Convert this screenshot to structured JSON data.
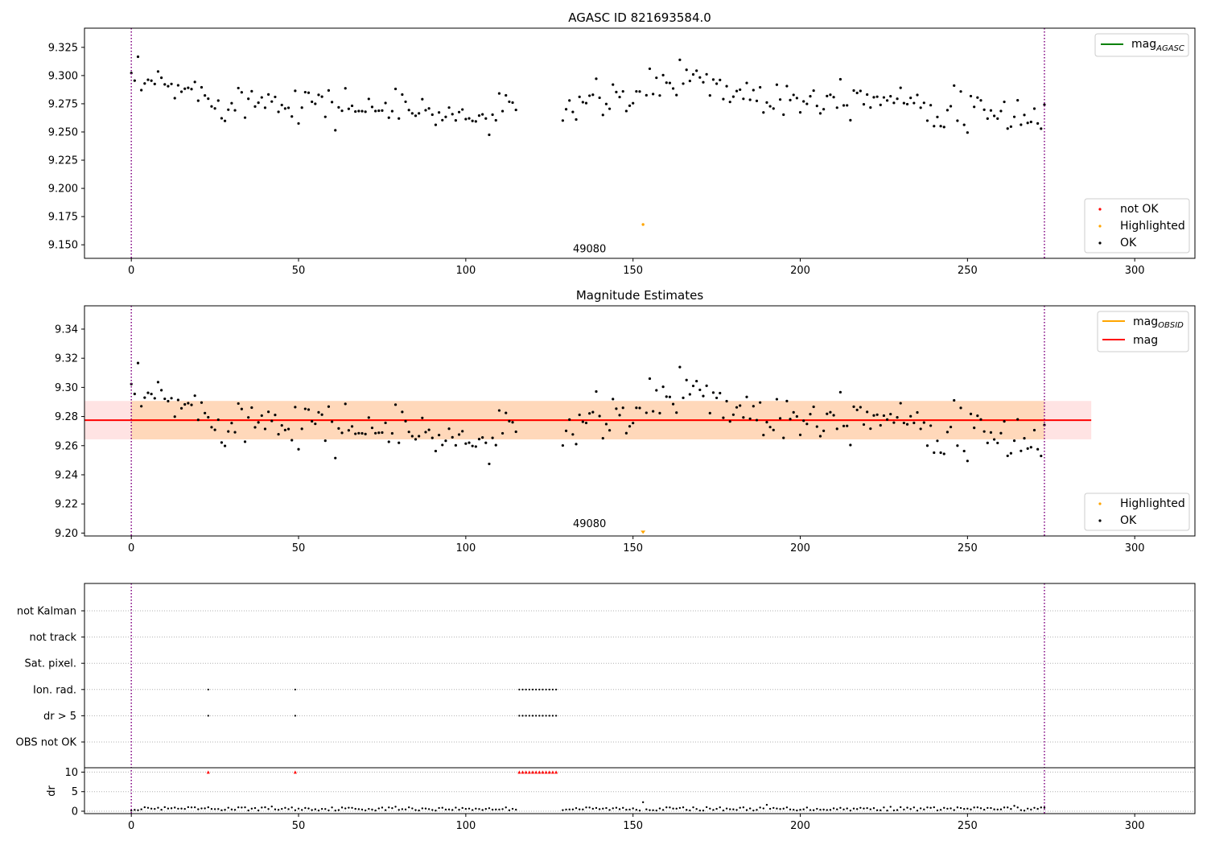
{
  "chart_data": [
    {
      "type": "scatter",
      "title": "AGASC ID 821693584.0",
      "xlim": [
        -14,
        318
      ],
      "ylim": [
        9.138,
        9.342
      ],
      "xticks": [
        0,
        50,
        100,
        150,
        200,
        250,
        300
      ],
      "yticks": [
        9.15,
        9.175,
        9.2,
        9.225,
        9.25,
        9.275,
        9.3,
        9.325
      ],
      "ytick_labels": [
        "9.150",
        "9.175",
        "9.200",
        "9.225",
        "9.250",
        "9.275",
        "9.300",
        "9.325"
      ],
      "vlines": [
        0,
        273
      ],
      "annotation": {
        "text": "49080",
        "x": 137,
        "y": 9.147
      },
      "line_legend": [
        {
          "label": "mag",
          "sub": "AGASC",
          "color": "#008000"
        }
      ],
      "marker_legend": [
        {
          "label": "not OK",
          "color": "#ff0000"
        },
        {
          "label": "Highlighted",
          "color": "#ffa500"
        },
        {
          "label": "OK",
          "color": "#000000"
        }
      ],
      "grid": false,
      "legend_position": [
        "upper right",
        "lower right"
      ],
      "highlighted_points": [
        [
          153,
          9.168
        ]
      ]
    },
    {
      "type": "scatter",
      "title": "Magnitude Estimates",
      "xlim": [
        -14,
        318
      ],
      "ylim": [
        9.198,
        9.356
      ],
      "xticks": [
        0,
        50,
        100,
        150,
        200,
        250,
        300
      ],
      "yticks": [
        9.2,
        9.22,
        9.24,
        9.26,
        9.28,
        9.3,
        9.32,
        9.34
      ],
      "ytick_labels": [
        "9.20",
        "9.22",
        "9.24",
        "9.26",
        "9.28",
        "9.30",
        "9.32",
        "9.34"
      ],
      "vlines": [
        0,
        273
      ],
      "annotation": {
        "text": "49080",
        "x": 137,
        "y": 9.203
      },
      "mag": 9.2775,
      "mag_band": [
        9.2643,
        9.2907
      ],
      "line_legend": [
        {
          "label": "mag",
          "sub": "OBSID",
          "color": "#ffa500"
        },
        {
          "label": "mag",
          "sub": "",
          "color": "#ff0000"
        }
      ],
      "marker_legend": [
        {
          "label": "Highlighted",
          "color": "#ffa500"
        },
        {
          "label": "OK",
          "color": "#000000"
        }
      ],
      "grid": false,
      "legend_position": [
        "upper right",
        "lower right"
      ],
      "highlighted_points": [
        [
          153,
          9.2
        ]
      ]
    },
    {
      "type": "scatter",
      "title": "",
      "xlim": [
        -14,
        318
      ],
      "xticks": [
        0,
        50,
        100,
        150,
        200,
        250,
        300
      ],
      "flag_categories": [
        "not Kalman",
        "not track",
        "Sat. pixel.",
        "Ion. rad.",
        "dr > 5",
        "OBS not OK"
      ],
      "flag_points": {
        "Ion. rad.": [
          23,
          49,
          116,
          117,
          118,
          119,
          120,
          121,
          122,
          123,
          124,
          125,
          126,
          127
        ],
        "dr > 5": [
          23,
          49,
          116,
          117,
          118,
          119,
          120,
          121,
          122,
          123,
          124,
          125,
          126,
          127
        ]
      },
      "dr_ylabel": "dr",
      "dr_ylim": [
        0,
        10.5
      ],
      "dr_yticks": [
        0,
        5,
        10
      ],
      "dr_ytick_labels": [
        "0",
        "5",
        "10"
      ],
      "dr_flagged": [
        23,
        49,
        116,
        117,
        118,
        119,
        120,
        121,
        122,
        123,
        124,
        125,
        126,
        127
      ],
      "vlines": [
        0,
        273
      ],
      "grid": true
    }
  ],
  "estimated_series": {
    "x_start": 0,
    "x_end": 273,
    "gap": [
      115,
      129
    ],
    "outlier_x": 153,
    "curve_knots": [
      [
        0,
        9.293
      ],
      [
        10,
        9.291
      ],
      [
        20,
        9.284
      ],
      [
        30,
        9.277
      ],
      [
        40,
        9.279
      ],
      [
        50,
        9.28
      ],
      [
        60,
        9.273
      ],
      [
        70,
        9.272
      ],
      [
        80,
        9.27
      ],
      [
        90,
        9.268
      ],
      [
        100,
        9.262
      ],
      [
        110,
        9.264
      ],
      [
        115,
        9.272
      ],
      [
        129,
        9.274
      ],
      [
        140,
        9.276
      ],
      [
        150,
        9.28
      ],
      [
        160,
        9.294
      ],
      [
        170,
        9.302
      ],
      [
        175,
        9.29
      ],
      [
        185,
        9.283
      ],
      [
        200,
        9.28
      ],
      [
        215,
        9.284
      ],
      [
        225,
        9.281
      ],
      [
        235,
        9.28
      ],
      [
        245,
        9.268
      ],
      [
        255,
        9.265
      ],
      [
        265,
        9.264
      ],
      [
        273,
        9.266
      ]
    ],
    "scatter_sd": 0.0085,
    "dr_baseline": 0.6
  }
}
